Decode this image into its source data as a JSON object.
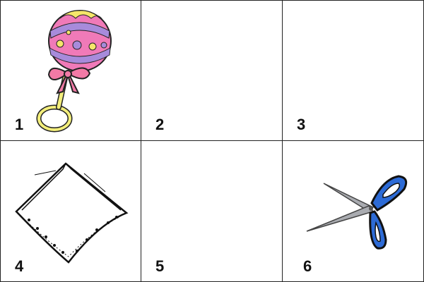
{
  "cells": [
    {
      "number": "1",
      "picture": "baby-rattle-icon"
    },
    {
      "number": "2",
      "picture": ""
    },
    {
      "number": "3",
      "picture": ""
    },
    {
      "number": "4",
      "picture": "handkerchief-icon"
    },
    {
      "number": "5",
      "picture": ""
    },
    {
      "number": "6",
      "picture": "scissors-icon"
    }
  ],
  "colors": {
    "border": "#222222",
    "rattle_body": "#f07ab8",
    "rattle_stripe": "#a78bdb",
    "rattle_dots": "#f5e66a",
    "rattle_bow": "#f27aa6",
    "rattle_handle": "#f3ee7b",
    "scissors_handle": "#2d6bd6",
    "scissors_blade": "#a9abb0"
  }
}
